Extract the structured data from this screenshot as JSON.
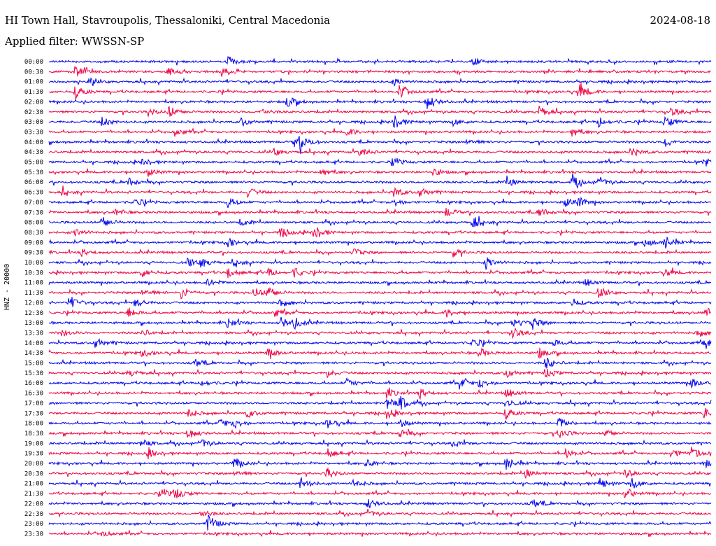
{
  "header": {
    "station": "HI Town Hall, Stavroupolis, Thessaloniki, Central Macedonia",
    "date": "2024-08-18",
    "filter": "Applied filter: WWSSN-SP"
  },
  "chart_data": {
    "type": "line",
    "channel_label": "HNZ - 20000",
    "colors": [
      "#0000ee",
      "#ee0044"
    ],
    "time_labels": [
      "00:00",
      "00:30",
      "01:00",
      "01:30",
      "02:00",
      "02:30",
      "03:00",
      "03:30",
      "04:00",
      "04:30",
      "05:00",
      "05:30",
      "06:00",
      "06:30",
      "07:00",
      "07:30",
      "08:00",
      "08:30",
      "09:00",
      "09:30",
      "10:00",
      "10:30",
      "11:00",
      "11:30",
      "12:00",
      "12:30",
      "13:00",
      "13:30",
      "14:00",
      "14:30",
      "15:00",
      "15:30",
      "16:00",
      "16:30",
      "17:00",
      "17:30",
      "18:00",
      "18:30",
      "19:00",
      "19:30",
      "20:00",
      "20:30",
      "21:00",
      "21:30",
      "22:00",
      "22:30",
      "23:00",
      "23:30"
    ],
    "bursts": [
      [
        [
          0.27,
          6
        ],
        [
          0.64,
          6
        ]
      ],
      [
        [
          0.04,
          9
        ],
        [
          0.18,
          6
        ],
        [
          0.26,
          8
        ]
      ],
      [
        [
          0.06,
          4
        ],
        [
          0.52,
          5
        ]
      ],
      [
        [
          0.04,
          9
        ],
        [
          0.53,
          10
        ],
        [
          0.8,
          12
        ]
      ],
      [
        [
          0.36,
          9
        ],
        [
          0.57,
          12
        ]
      ],
      [
        [
          0.15,
          6
        ],
        [
          0.18,
          9
        ],
        [
          0.32,
          5
        ],
        [
          0.74,
          8
        ],
        [
          0.94,
          6
        ]
      ],
      [
        [
          0.08,
          7
        ],
        [
          0.29,
          6
        ],
        [
          0.52,
          10
        ],
        [
          0.61,
          5
        ],
        [
          0.83,
          7
        ],
        [
          0.93,
          9
        ]
      ],
      [
        [
          0.19,
          6
        ],
        [
          0.45,
          6
        ],
        [
          0.79,
          7
        ]
      ],
      [
        [
          0.37,
          7
        ],
        [
          0.38,
          10
        ],
        [
          0.63,
          6
        ],
        [
          0.93,
          7
        ]
      ],
      [
        [
          0.34,
          5
        ],
        [
          0.47,
          7
        ],
        [
          0.88,
          7
        ]
      ],
      [
        [
          0.14,
          5
        ],
        [
          0.52,
          6
        ],
        [
          0.99,
          6
        ]
      ],
      [
        [
          0.15,
          6
        ],
        [
          0.41,
          7
        ],
        [
          0.58,
          6
        ]
      ],
      [
        [
          0.12,
          6
        ],
        [
          0.69,
          8
        ],
        [
          0.79,
          9
        ],
        [
          0.83,
          7
        ]
      ],
      [
        [
          0.02,
          5
        ],
        [
          0.3,
          7
        ],
        [
          0.52,
          8
        ],
        [
          0.56,
          7
        ]
      ],
      [
        [
          0.13,
          6
        ],
        [
          0.27,
          7
        ],
        [
          0.52,
          6
        ],
        [
          0.78,
          8
        ],
        [
          0.8,
          6
        ]
      ],
      [
        [
          0.1,
          5
        ],
        [
          0.6,
          7
        ],
        [
          0.74,
          7
        ]
      ],
      [
        [
          0.08,
          9
        ],
        [
          0.29,
          5
        ],
        [
          0.64,
          10
        ]
      ],
      [
        [
          0.04,
          6
        ],
        [
          0.35,
          8
        ],
        [
          0.4,
          10
        ]
      ],
      [
        [
          0.27,
          6
        ],
        [
          0.9,
          7
        ],
        [
          0.93,
          9
        ]
      ],
      [
        [
          0.05,
          5
        ],
        [
          0.46,
          6
        ],
        [
          0.61,
          6
        ]
      ],
      [
        [
          0.21,
          6
        ],
        [
          0.23,
          7
        ],
        [
          0.28,
          6
        ],
        [
          0.66,
          9
        ]
      ],
      [
        [
          0.14,
          7
        ],
        [
          0.27,
          8
        ],
        [
          0.33,
          6
        ],
        [
          0.37,
          7
        ],
        [
          0.93,
          6
        ]
      ],
      [
        [
          0.24,
          5
        ],
        [
          0.81,
          5
        ]
      ],
      [
        [
          0.14,
          8
        ],
        [
          0.2,
          9
        ],
        [
          0.31,
          8
        ],
        [
          0.33,
          9
        ],
        [
          0.83,
          7
        ]
      ],
      [
        [
          0.03,
          10
        ],
        [
          0.13,
          7
        ],
        [
          0.35,
          6
        ],
        [
          0.79,
          6
        ]
      ],
      [
        [
          0.12,
          7
        ],
        [
          0.34,
          6
        ],
        [
          0.6,
          6
        ],
        [
          0.99,
          8
        ]
      ],
      [
        [
          0.27,
          7
        ],
        [
          0.35,
          8
        ],
        [
          0.37,
          8
        ],
        [
          0.7,
          8
        ],
        [
          0.73,
          9
        ]
      ],
      [
        [
          0.02,
          5
        ],
        [
          0.14,
          6
        ],
        [
          0.7,
          8
        ],
        [
          0.98,
          6
        ]
      ],
      [
        [
          0.07,
          8
        ],
        [
          0.64,
          7
        ],
        [
          0.76,
          6
        ],
        [
          0.99,
          9
        ]
      ],
      [
        [
          0.14,
          5
        ],
        [
          0.33,
          8
        ],
        [
          0.65,
          7
        ],
        [
          0.74,
          7
        ]
      ],
      [
        [
          0.22,
          6
        ],
        [
          0.75,
          9
        ]
      ],
      [
        [
          0.12,
          6
        ],
        [
          0.42,
          6
        ],
        [
          0.69,
          7
        ],
        [
          0.75,
          7
        ]
      ],
      [
        [
          0.23,
          5
        ],
        [
          0.45,
          6
        ],
        [
          0.62,
          8
        ],
        [
          0.65,
          7
        ],
        [
          0.97,
          7
        ]
      ],
      [
        [
          0.51,
          7
        ],
        [
          0.56,
          7
        ],
        [
          0.69,
          7
        ]
      ],
      [
        [
          0.51,
          9
        ],
        [
          0.53,
          10
        ],
        [
          0.69,
          7
        ]
      ],
      [
        [
          0.21,
          7
        ],
        [
          0.3,
          6
        ],
        [
          0.51,
          7
        ],
        [
          0.69,
          8
        ],
        [
          0.99,
          9
        ]
      ],
      [
        [
          0.26,
          7
        ],
        [
          0.28,
          6
        ],
        [
          0.42,
          7
        ],
        [
          0.53,
          6
        ],
        [
          0.77,
          8
        ]
      ],
      [
        [
          0.21,
          9
        ],
        [
          0.53,
          7
        ],
        [
          0.77,
          8
        ],
        [
          0.84,
          6
        ]
      ],
      [
        [
          0.14,
          6
        ],
        [
          0.23,
          6
        ],
        [
          0.61,
          6
        ]
      ],
      [
        [
          0.15,
          6
        ],
        [
          0.42,
          7
        ],
        [
          0.78,
          7
        ],
        [
          0.94,
          8
        ],
        [
          0.97,
          9
        ]
      ],
      [
        [
          0.28,
          8
        ],
        [
          0.48,
          6
        ],
        [
          0.69,
          9
        ],
        [
          0.99,
          7
        ]
      ],
      [
        [
          0.28,
          6
        ],
        [
          0.42,
          8
        ],
        [
          0.72,
          6
        ],
        [
          0.87,
          6
        ]
      ],
      [
        [
          0.38,
          9
        ],
        [
          0.46,
          6
        ],
        [
          0.83,
          9
        ],
        [
          0.88,
          8
        ]
      ],
      [
        [
          0.17,
          7
        ],
        [
          0.19,
          9
        ],
        [
          0.87,
          9
        ]
      ],
      [
        [
          0.48,
          8
        ],
        [
          0.73,
          7
        ]
      ],
      [
        [
          0.23,
          6
        ],
        [
          0.48,
          5
        ]
      ],
      [
        [
          0.24,
          13
        ]
      ],
      [
        [
          0.08,
          5
        ]
      ]
    ]
  }
}
